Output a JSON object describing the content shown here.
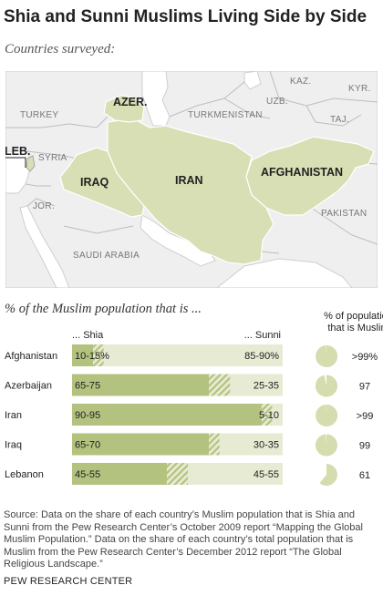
{
  "title": "Shia and Sunni Muslims Living Side by Side",
  "map": {
    "subtitle": "Countries surveyed:",
    "colors": {
      "surveyed": "#d8dfb4",
      "land": "#efefef",
      "border": "#bdbdbd",
      "water": "#ffffff"
    },
    "surveyed_labels": {
      "afghanistan": "AFGHANISTAN",
      "iran": "IRAN",
      "iraq": "IRAQ",
      "azerbaijan": "AZER.",
      "lebanon": "LEB."
    },
    "other_labels": {
      "turkey": "TURKEY",
      "syria": "SYRIA",
      "jordan": "JOR.",
      "saudi_arabia": "SAUDI ARABIA",
      "turkmenistan": "TURKMENISTAN",
      "uzbekistan": "UZB.",
      "kazakhstan": "KAZ.",
      "kyrgyzstan": "KYR.",
      "tajikistan": "TAJ.",
      "pakistan": "PAKISTAN"
    }
  },
  "chart_data": {
    "type": "bar",
    "subtitle": "% of the Muslim population that is ...",
    "shia_heading": "... Shia",
    "sunni_heading": "... Sunni",
    "pie_heading_line1": "% of population",
    "pie_heading_line2": "that is Muslim",
    "categories": [
      "Afghanistan",
      "Azerbaijan",
      "Iran",
      "Iraq",
      "Lebanon"
    ],
    "shia_range": [
      [
        10,
        15
      ],
      [
        65,
        75
      ],
      [
        90,
        95
      ],
      [
        65,
        70
      ],
      [
        45,
        55
      ]
    ],
    "sunni_range": [
      [
        85,
        90
      ],
      [
        25,
        35
      ],
      [
        5,
        10
      ],
      [
        30,
        35
      ],
      [
        45,
        55
      ]
    ],
    "shia_labels": [
      "10-15%",
      "65-75",
      "90-95",
      "65-70",
      "45-55"
    ],
    "sunni_labels": [
      "85-90%",
      "25-35",
      "5-10",
      "30-35",
      "45-55"
    ],
    "muslim_share": [
      99.5,
      97,
      99.5,
      99,
      61
    ],
    "muslim_labels": [
      ">99%",
      "97",
      ">99",
      "99",
      "61"
    ],
    "colors": {
      "shia": "#b3c27e",
      "sunni": "#e7ebd3",
      "pie": "#d5dcae",
      "hatch": "#b3c27e"
    }
  },
  "source": "Source: Data on the share of each country’s Muslim population that is Shia and Sunni from the Pew Research Center’s October 2009 report “Mapping the Global Muslim Population.” Data on the share of each country’s total population that is Muslim from the Pew Research Center’s December 2012 report “The Global Religious Landscape.”",
  "credit": "PEW RESEARCH CENTER"
}
